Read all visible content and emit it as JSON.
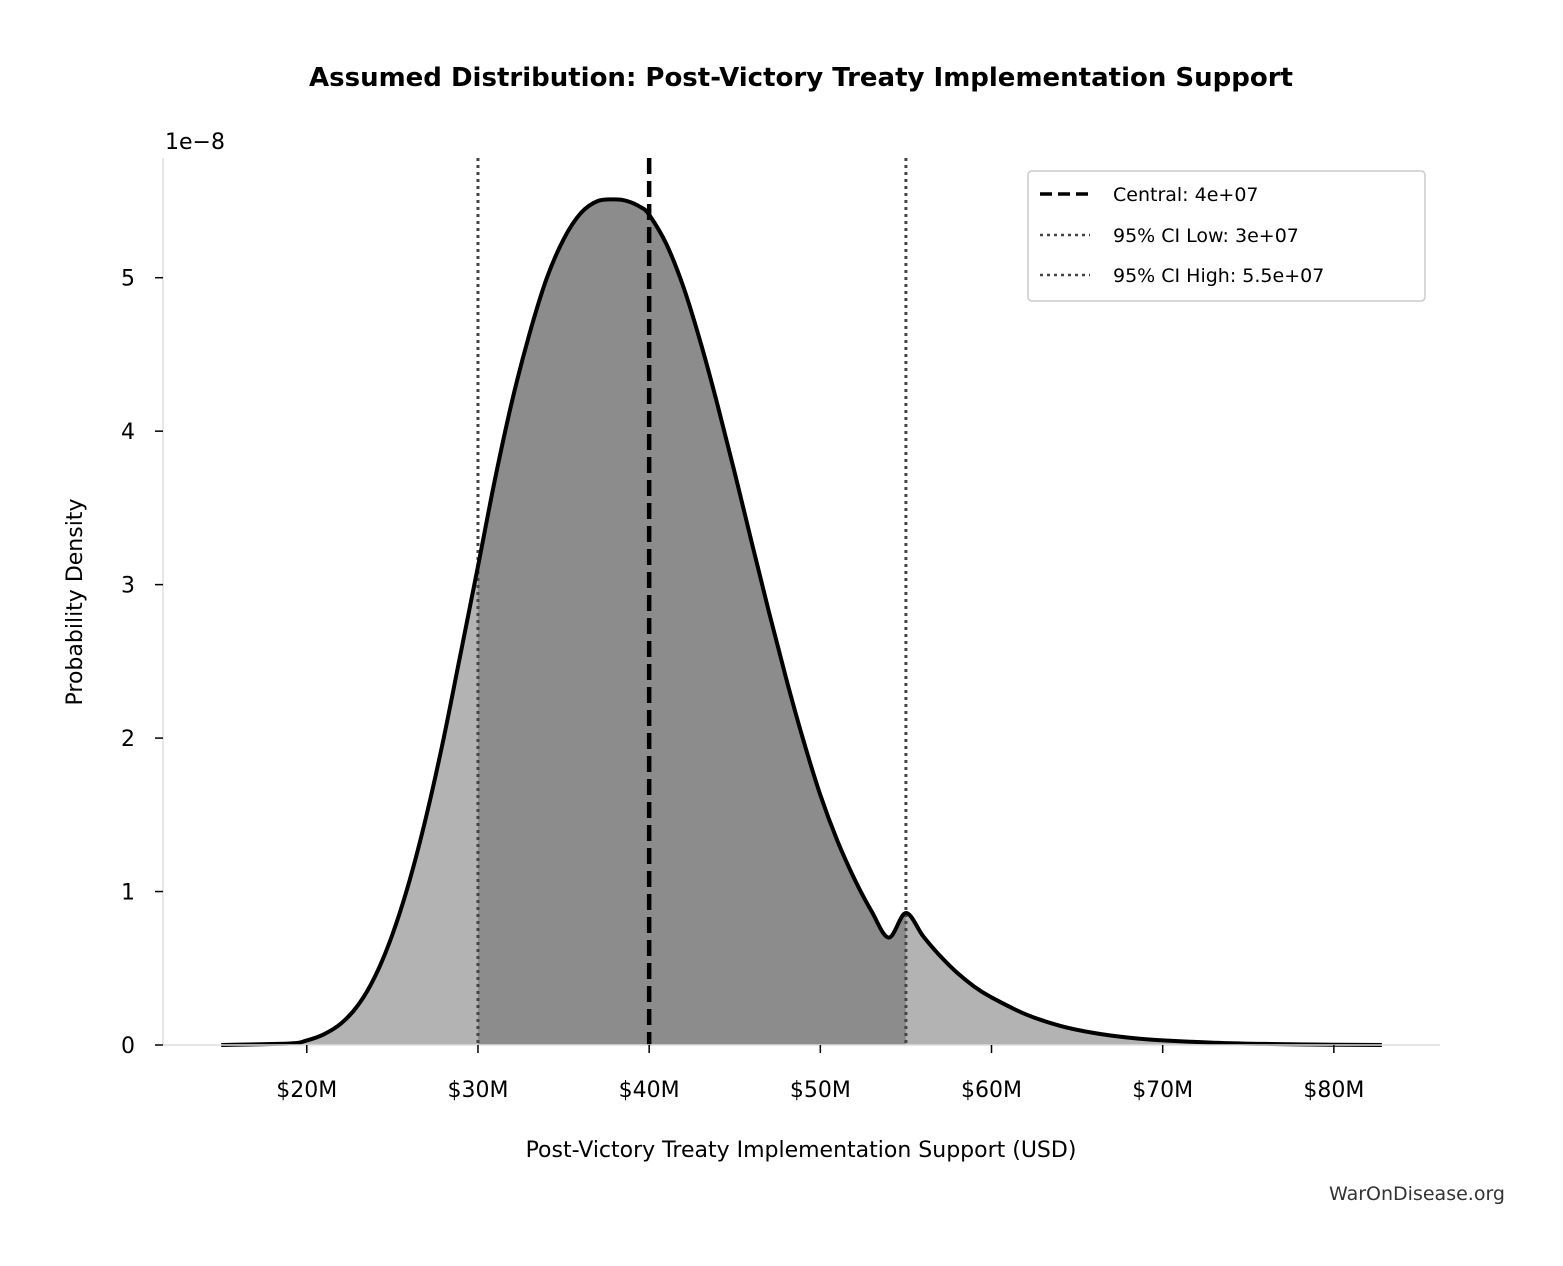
{
  "chart_data": {
    "type": "area",
    "title": "Assumed Distribution: Post-Victory Treaty Implementation Support",
    "xlabel": "Post-Victory Treaty Implementation Support (USD)",
    "ylabel": "Probability Density",
    "y_scale_label": "1e−8",
    "xlim": [
      11600000,
      86200000
    ],
    "ylim": [
      0,
      5.78
    ],
    "x_ticks": [
      {
        "value": 20000000,
        "label": "$20M"
      },
      {
        "value": 30000000,
        "label": "$30M"
      },
      {
        "value": 40000000,
        "label": "$40M"
      },
      {
        "value": 50000000,
        "label": "$50M"
      },
      {
        "value": 60000000,
        "label": "$60M"
      },
      {
        "value": 70000000,
        "label": "$70M"
      },
      {
        "value": 80000000,
        "label": "$80M"
      }
    ],
    "y_ticks": [
      {
        "value": 0,
        "label": "0"
      },
      {
        "value": 1,
        "label": "1"
      },
      {
        "value": 2,
        "label": "2"
      },
      {
        "value": 3,
        "label": "3"
      },
      {
        "value": 4,
        "label": "4"
      },
      {
        "value": 5,
        "label": "5"
      }
    ],
    "series": [
      {
        "name": "density",
        "x": [
          15000000,
          19000000,
          20000000,
          21000000,
          22000000,
          23000000,
          24000000,
          25000000,
          26000000,
          27000000,
          28000000,
          29000000,
          30000000,
          31000000,
          32000000,
          33000000,
          34000000,
          35000000,
          36000000,
          37000000,
          38000000,
          38700000,
          39500000,
          40000000,
          41000000,
          42000000,
          43000000,
          44000000,
          45000000,
          46000000,
          47000000,
          48000000,
          49000000,
          50000000,
          51000000,
          52000000,
          53000000,
          54000000,
          55000000,
          56000000,
          57000000,
          58000000,
          59000000,
          60000000,
          62000000,
          64000000,
          66000000,
          68000000,
          70000000,
          73000000,
          76000000,
          80000000,
          82800000
        ],
        "y": [
          0.0,
          0.01,
          0.03,
          0.07,
          0.14,
          0.26,
          0.45,
          0.72,
          1.07,
          1.5,
          2.0,
          2.56,
          3.12,
          3.69,
          4.2,
          4.63,
          4.99,
          5.25,
          5.42,
          5.5,
          5.51,
          5.5,
          5.46,
          5.41,
          5.22,
          4.94,
          4.58,
          4.17,
          3.73,
          3.27,
          2.82,
          2.39,
          1.99,
          1.63,
          1.33,
          1.08,
          0.87,
          0.7,
          0.86,
          0.71,
          0.58,
          0.47,
          0.38,
          0.31,
          0.2,
          0.125,
          0.078,
          0.048,
          0.03,
          0.015,
          0.007,
          0.002,
          0.0
        ]
      }
    ],
    "central": {
      "value": 40000000,
      "label": "Central: 4e+07"
    },
    "ci_low": {
      "value": 30000000,
      "label": "95% CI Low: 3e+07"
    },
    "ci_high": {
      "value": 55000000,
      "label": "95% CI High: 5.5e+07"
    },
    "fill_outer_color": "#b3b3b3",
    "fill_inner_color": "#8c8c8c",
    "line_color": "#000000",
    "ci_line_color": "#444444",
    "legend_position": "upper right",
    "grid": false
  },
  "watermark": "WarOnDisease.org"
}
